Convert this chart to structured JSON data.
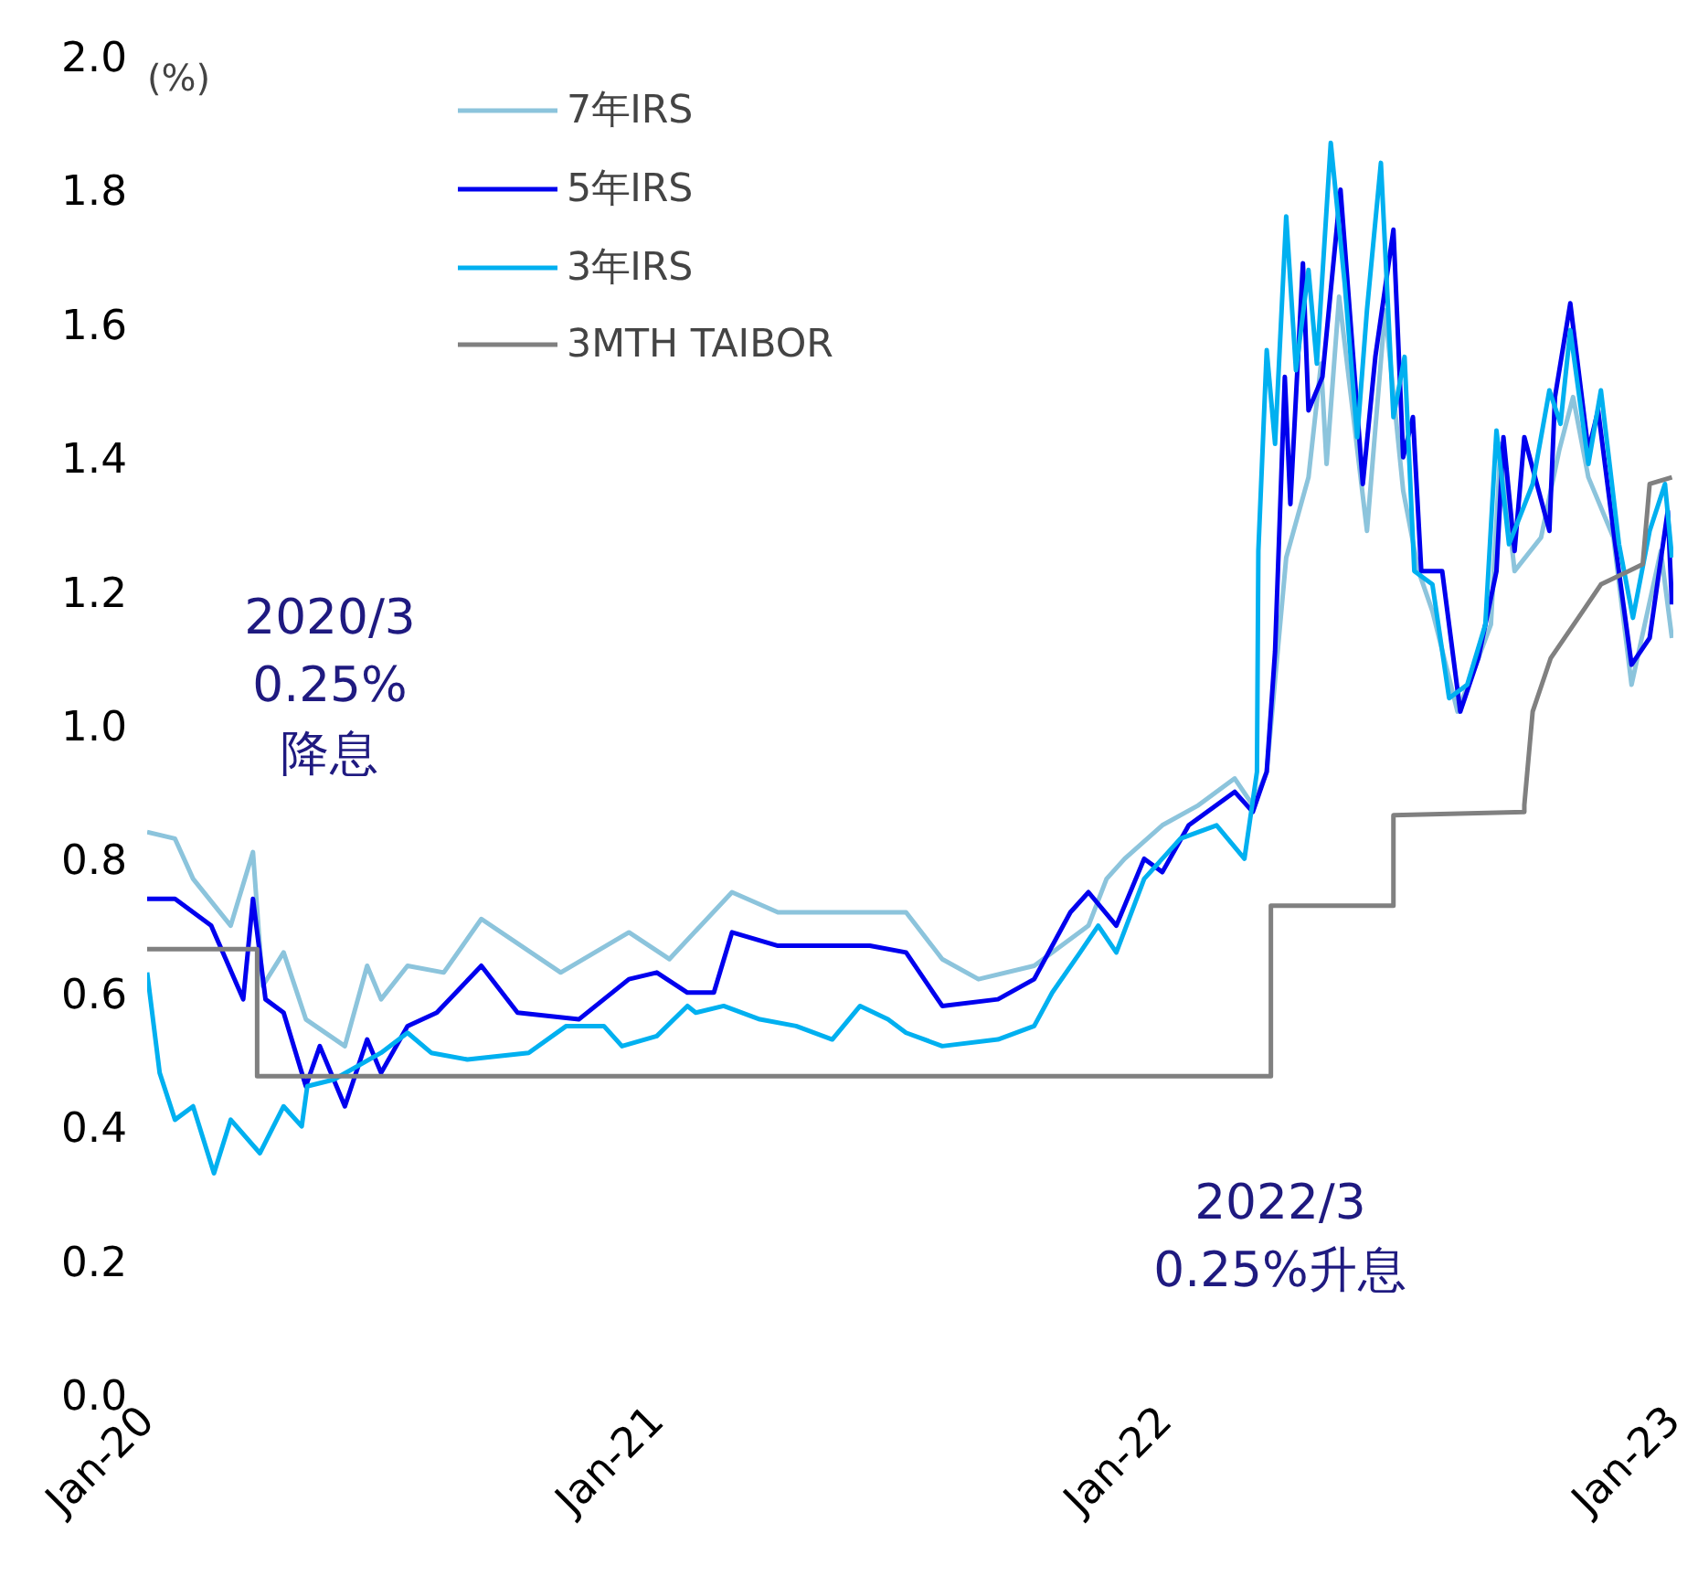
{
  "chart_data": {
    "type": "line",
    "ylabel": "(%)",
    "xlim": [
      "2020-01-01",
      "2023-01-01"
    ],
    "xticks": [
      {
        "value": "2020-01-01",
        "label": "Jan-20"
      },
      {
        "value": "2021-01-01",
        "label": "Jan-21"
      },
      {
        "value": "2022-01-01",
        "label": "Jan-22"
      },
      {
        "value": "2023-01-01",
        "label": "Jan-23"
      }
    ],
    "ylim": [
      0,
      2
    ],
    "yticks": [
      {
        "value": 0,
        "label": "0.0"
      },
      0.2,
      0.4,
      0.6,
      0.8,
      {
        "value": 1,
        "label": "1.0"
      },
      1.2,
      1.4,
      1.6,
      1.8,
      {
        "value": 2,
        "label": "2.0"
      }
    ],
    "grid": false,
    "legend": "top left",
    "annotations": [
      "2020/3\n0.25%\n降息",
      "2022/3\n0.25%升息"
    ],
    "series": [
      {
        "name": "7年IRS",
        "color": "#8cc4dc",
        "x": [
          "2020-01-01",
          "2020-01-21",
          "2020-02-03",
          "2020-03-01",
          "2020-03-17",
          "2020-03-24",
          "2020-04-08",
          "2020-04-24",
          "2020-05-22",
          "2020-06-07",
          "2020-06-17",
          "2020-07-06",
          "2020-08-01",
          "2020-08-28",
          "2020-10-24",
          "2020-12-12",
          "2021-01-10",
          "2021-02-24",
          "2021-03-29",
          "2021-06-29",
          "2021-07-25",
          "2021-08-20",
          "2021-09-29",
          "2021-11-07",
          "2021-11-20",
          "2021-12-03",
          "2021-12-30",
          "2022-01-25",
          "2022-02-20",
          "2022-03-05",
          "2022-03-15",
          "2022-03-29",
          "2022-04-14",
          "2022-04-23",
          "2022-04-27",
          "2022-05-06",
          "2022-05-26",
          "2022-06-08",
          "2022-06-21",
          "2022-07-02",
          "2022-07-12",
          "2022-07-30",
          "2022-08-14",
          "2022-08-23",
          "2022-08-30",
          "2022-09-09",
          "2022-09-28",
          "2022-10-11",
          "2022-10-21",
          "2022-11-01",
          "2022-11-19",
          "2022-12-02",
          "2022-12-23",
          "2022-12-31"
        ],
        "values": [
          0.84,
          0.83,
          0.77,
          0.7,
          0.81,
          0.61,
          0.66,
          0.56,
          0.52,
          0.64,
          0.59,
          0.64,
          0.63,
          0.71,
          0.63,
          0.69,
          0.65,
          0.75,
          0.72,
          0.72,
          0.65,
          0.62,
          0.64,
          0.7,
          0.77,
          0.8,
          0.85,
          0.88,
          0.92,
          0.88,
          0.93,
          1.25,
          1.37,
          1.54,
          1.39,
          1.64,
          1.29,
          1.62,
          1.35,
          1.23,
          1.17,
          1.02,
          1.1,
          1.15,
          1.42,
          1.23,
          1.28,
          1.41,
          1.49,
          1.37,
          1.28,
          1.06,
          1.26,
          1.13
        ]
      },
      {
        "name": "5年IRS",
        "color": "#0000ee",
        "x": [
          "2020-01-01",
          "2020-01-21",
          "2020-02-16",
          "2020-03-10",
          "2020-03-17",
          "2020-03-26",
          "2020-04-08",
          "2020-04-24",
          "2020-05-04",
          "2020-05-22",
          "2020-06-07",
          "2020-06-17",
          "2020-07-06",
          "2020-07-27",
          "2020-08-28",
          "2020-09-23",
          "2020-11-06",
          "2020-12-12",
          "2021-01-01",
          "2021-01-23",
          "2021-02-11",
          "2021-02-24",
          "2021-03-29",
          "2021-06-03",
          "2021-06-29",
          "2021-07-25",
          "2021-09-03",
          "2021-09-29",
          "2021-10-25",
          "2021-11-07",
          "2021-11-27",
          "2021-12-17",
          "2021-12-30",
          "2022-01-18",
          "2022-02-20",
          "2022-03-05",
          "2022-03-15",
          "2022-03-21",
          "2022-03-28",
          "2022-04-01",
          "2022-04-10",
          "2022-04-14",
          "2022-04-24",
          "2022-05-07",
          "2022-05-23",
          "2022-06-01",
          "2022-06-14",
          "2022-06-21",
          "2022-06-28",
          "2022-07-04",
          "2022-07-19",
          "2022-08-01",
          "2022-08-14",
          "2022-08-27",
          "2022-09-01",
          "2022-09-09",
          "2022-09-16",
          "2022-10-04",
          "2022-10-08",
          "2022-10-19",
          "2022-11-01",
          "2022-11-08",
          "2022-11-19",
          "2022-12-02",
          "2022-12-15",
          "2022-12-28",
          "2022-12-31"
        ],
        "values": [
          0.74,
          0.74,
          0.7,
          0.59,
          0.74,
          0.59,
          0.57,
          0.46,
          0.52,
          0.43,
          0.53,
          0.48,
          0.55,
          0.57,
          0.64,
          0.57,
          0.56,
          0.62,
          0.63,
          0.6,
          0.6,
          0.69,
          0.67,
          0.67,
          0.66,
          0.58,
          0.59,
          0.62,
          0.72,
          0.75,
          0.7,
          0.8,
          0.78,
          0.85,
          0.9,
          0.87,
          0.93,
          1.11,
          1.52,
          1.33,
          1.69,
          1.47,
          1.52,
          1.8,
          1.36,
          1.55,
          1.74,
          1.4,
          1.46,
          1.23,
          1.23,
          1.02,
          1.1,
          1.23,
          1.43,
          1.26,
          1.43,
          1.29,
          1.49,
          1.63,
          1.41,
          1.47,
          1.29,
          1.09,
          1.13,
          1.32,
          1.18
        ]
      },
      {
        "name": "3年IRS",
        "color": "#00b0f0",
        "x": [
          "2020-01-01",
          "2020-01-10",
          "2020-01-21",
          "2020-02-03",
          "2020-02-18",
          "2020-03-01",
          "2020-03-22",
          "2020-04-08",
          "2020-04-21",
          "2020-04-25",
          "2020-05-14",
          "2020-06-17",
          "2020-07-06",
          "2020-07-23",
          "2020-08-18",
          "2020-10-01",
          "2020-10-28",
          "2020-11-24",
          "2020-12-07",
          "2021-01-01",
          "2021-01-23",
          "2021-01-29",
          "2021-02-18",
          "2021-03-16",
          "2021-04-11",
          "2021-05-07",
          "2021-05-27",
          "2021-06-16",
          "2021-06-29",
          "2021-07-25",
          "2021-09-03",
          "2021-09-29",
          "2021-10-12",
          "2021-11-01",
          "2021-11-14",
          "2021-11-27",
          "2021-12-17",
          "2022-01-12",
          "2022-02-07",
          "2022-02-27",
          "2022-03-08",
          "2022-03-09",
          "2022-03-15",
          "2022-03-21",
          "2022-03-29",
          "2022-04-05",
          "2022-04-14",
          "2022-04-20",
          "2022-04-30",
          "2022-05-10",
          "2022-05-19",
          "2022-05-26",
          "2022-06-05",
          "2022-06-14",
          "2022-06-22",
          "2022-06-29",
          "2022-07-12",
          "2022-07-24",
          "2022-08-06",
          "2022-08-19",
          "2022-08-27",
          "2022-09-05",
          "2022-09-22",
          "2022-10-04",
          "2022-10-12",
          "2022-10-19",
          "2022-11-01",
          "2022-11-10",
          "2022-11-23",
          "2022-12-03",
          "2022-12-15",
          "2022-12-26",
          "2022-12-31"
        ],
        "values": [
          0.63,
          0.48,
          0.41,
          0.43,
          0.33,
          0.41,
          0.36,
          0.43,
          0.4,
          0.46,
          0.47,
          0.51,
          0.54,
          0.51,
          0.5,
          0.51,
          0.55,
          0.55,
          0.52,
          0.535,
          0.58,
          0.57,
          0.58,
          0.56,
          0.55,
          0.53,
          0.58,
          0.56,
          0.54,
          0.52,
          0.53,
          0.55,
          0.6,
          0.66,
          0.7,
          0.66,
          0.77,
          0.83,
          0.85,
          0.8,
          0.93,
          1.26,
          1.56,
          1.42,
          1.76,
          1.53,
          1.68,
          1.54,
          1.87,
          1.66,
          1.43,
          1.62,
          1.84,
          1.46,
          1.55,
          1.23,
          1.21,
          1.04,
          1.06,
          1.15,
          1.44,
          1.27,
          1.36,
          1.5,
          1.45,
          1.59,
          1.39,
          1.5,
          1.27,
          1.16,
          1.29,
          1.36,
          1.25
        ]
      },
      {
        "name": "3MTH TAIBOR",
        "color": "#808080",
        "x": [
          "2020-01-01",
          "2020-03-20",
          "2020-03-20",
          "2022-03-18",
          "2022-03-18",
          "2022-06-14",
          "2022-06-14",
          "2022-09-16",
          "2022-09-16",
          "2022-09-22",
          "2022-10-05",
          "2022-10-28",
          "2022-11-10",
          "2022-12-10",
          "2022-12-15",
          "2022-12-31"
        ],
        "values": [
          0.665,
          0.665,
          0.475,
          0.475,
          0.73,
          0.73,
          0.865,
          0.87,
          0.88,
          1.02,
          1.1,
          1.17,
          1.21,
          1.24,
          1.36,
          1.37
        ]
      }
    ]
  }
}
